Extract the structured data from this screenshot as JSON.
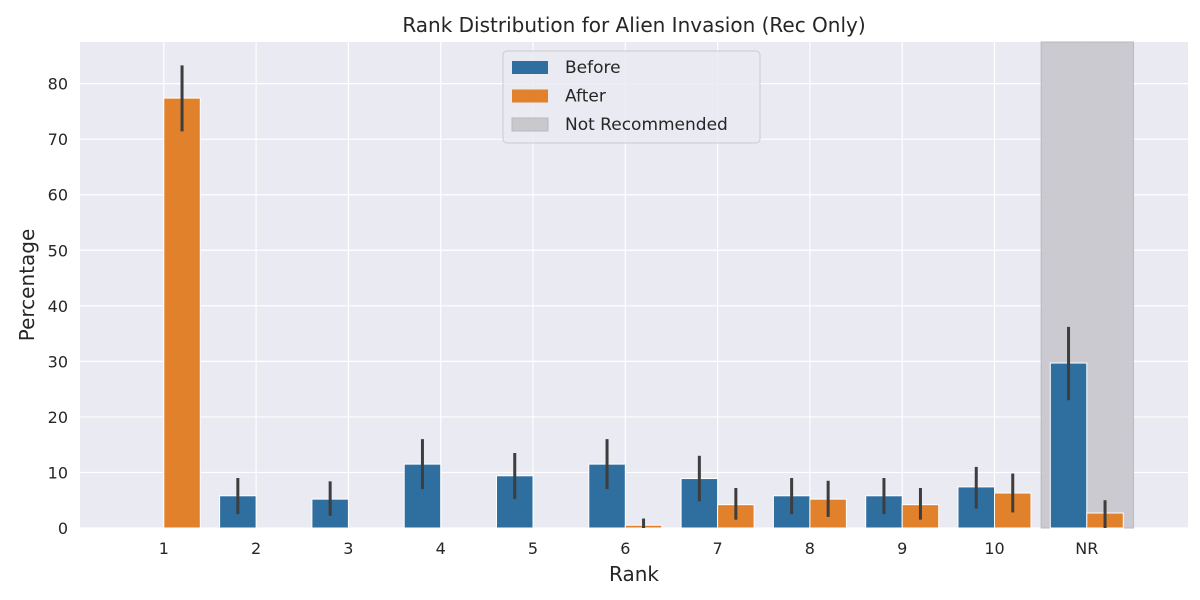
{
  "chart_data": {
    "type": "bar",
    "title": "Rank Distribution for Alien Invasion (Rec Only)",
    "xlabel": "Rank",
    "ylabel": "Percentage",
    "categories": [
      "1",
      "2",
      "3",
      "4",
      "5",
      "6",
      "7",
      "8",
      "9",
      "10",
      "NR"
    ],
    "ylim": [
      0,
      87.5
    ],
    "yticks": [
      0,
      10,
      20,
      30,
      40,
      50,
      60,
      70,
      80
    ],
    "grid": true,
    "legend_position": "top-center",
    "series": [
      {
        "name": "Before",
        "color": "#2f6f9f",
        "values": [
          0,
          5.8,
          5.2,
          11.5,
          9.4,
          11.5,
          8.9,
          5.8,
          5.8,
          7.4,
          29.7
        ],
        "err_low": [
          0,
          2.5,
          2.2,
          7.0,
          5.2,
          7.0,
          4.8,
          2.5,
          2.5,
          3.5,
          23.0
        ],
        "err_high": [
          0,
          9.0,
          8.4,
          16.0,
          13.5,
          16.0,
          13.0,
          9.0,
          9.0,
          11.0,
          36.2
        ]
      },
      {
        "name": "After",
        "color": "#e1812c",
        "values": [
          77.4,
          0,
          0,
          0,
          0,
          0.5,
          4.2,
          5.2,
          4.2,
          6.3,
          2.7
        ],
        "err_low": [
          71.4,
          0,
          0,
          0,
          0,
          0,
          1.5,
          2.0,
          1.5,
          2.8,
          0
        ],
        "err_high": [
          83.3,
          0,
          0,
          0,
          0,
          1.7,
          7.2,
          8.5,
          7.2,
          9.8,
          5.0
        ]
      }
    ],
    "highlight": {
      "name": "Not Recommended",
      "category": "NR",
      "color": "#c8c8cd"
    }
  }
}
